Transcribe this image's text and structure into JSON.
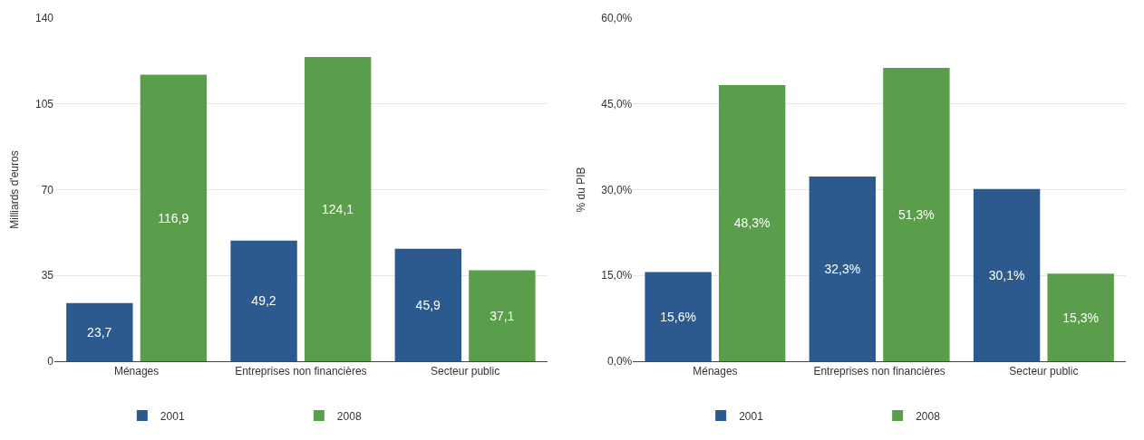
{
  "chart_data": [
    {
      "type": "bar",
      "ylabel": "Milliards d'euros",
      "categories": [
        "Ménages",
        "Entreprises non financières",
        "Secteur public"
      ],
      "series": [
        {
          "name": "2001",
          "color": "#2d5a8e",
          "values": [
            23.7,
            49.2,
            45.9
          ],
          "value_labels": [
            "23,7",
            "49,2",
            "45,9"
          ]
        },
        {
          "name": "2008",
          "color": "#5a9e4b",
          "values": [
            116.9,
            124.1,
            37.1
          ],
          "value_labels": [
            "116,9",
            "124,1",
            "37,1"
          ]
        }
      ],
      "ylim": [
        0,
        140
      ],
      "yticks": [
        0,
        35,
        70,
        105,
        140
      ],
      "grid": "y",
      "legend": "bottom"
    },
    {
      "type": "bar",
      "ylabel": "% du PIB",
      "categories": [
        "Ménages",
        "Entreprises non financières",
        "Secteur public"
      ],
      "series": [
        {
          "name": "2001",
          "color": "#2d5a8e",
          "values": [
            15.6,
            32.3,
            30.1
          ],
          "value_labels": [
            "15,6%",
            "32,3%",
            "30,1%"
          ]
        },
        {
          "name": "2008",
          "color": "#5a9e4b",
          "values": [
            48.3,
            51.3,
            15.3
          ],
          "value_labels": [
            "48,3%",
            "51,3%",
            "15,3%"
          ]
        }
      ],
      "ylim": [
        0,
        60
      ],
      "yticks": [
        {
          "value": 0,
          "label": "0,0%"
        },
        {
          "value": 15,
          "label": "15,0%"
        },
        {
          "value": 30,
          "label": "30,0%"
        },
        {
          "value": 45,
          "label": "45,0%"
        },
        {
          "value": 60,
          "label": "60,0%"
        }
      ],
      "grid": "y",
      "legend": "bottom"
    }
  ]
}
